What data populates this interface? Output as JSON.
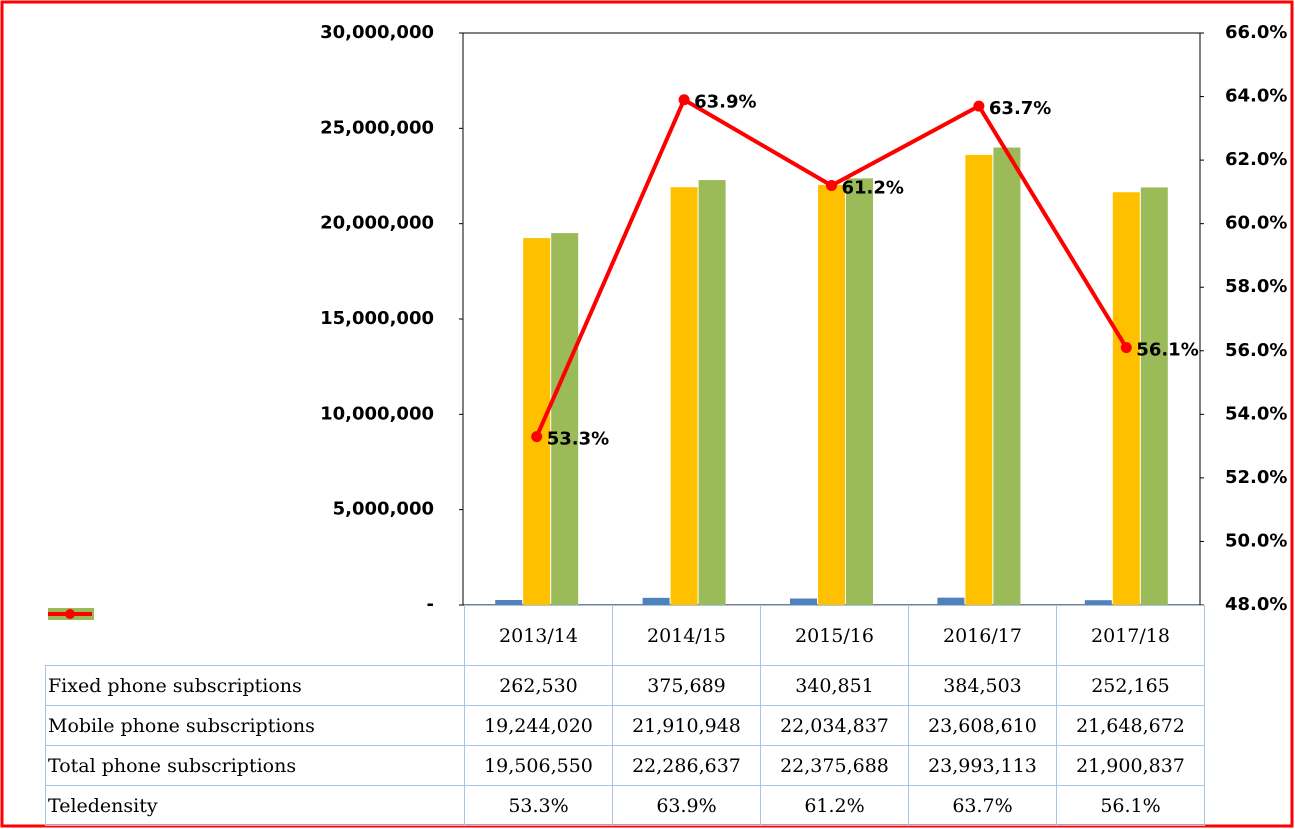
{
  "chart_data": {
    "type": "bar",
    "categories": [
      "2013/14",
      "2014/15",
      "2015/16",
      "2016/17",
      "2017/18"
    ],
    "series": [
      {
        "name": "Fixed phone subscriptions",
        "type": "bar",
        "color": "#4f81bd",
        "values": [
          262530,
          375689,
          340851,
          384503,
          252165
        ],
        "value_labels": [
          "262,530",
          "375,689",
          "340,851",
          "384,503",
          "252,165"
        ]
      },
      {
        "name": "Mobile phone subscriptions",
        "type": "bar",
        "color": "#ffc000",
        "values": [
          19244020,
          21910948,
          22034837,
          23608610,
          21648672
        ],
        "value_labels": [
          "19,244,020",
          "21,910,948",
          "22,034,837",
          "23,608,610",
          "21,648,672"
        ]
      },
      {
        "name": "Total phone subscriptions",
        "type": "bar",
        "color": "#9bbb59",
        "values": [
          19506550,
          22286637,
          22375688,
          23993113,
          21900837
        ],
        "value_labels": [
          "19,506,550",
          "22,286,637",
          "22,375,688",
          "23,993,113",
          "21,900,837"
        ]
      },
      {
        "name": "Teledensity",
        "type": "line",
        "axis": "y2",
        "color": "#ff0000",
        "values": [
          53.3,
          63.9,
          61.2,
          63.7,
          56.1
        ],
        "value_labels": [
          "53.3%",
          "63.9%",
          "61.2%",
          "63.7%",
          "56.1%"
        ]
      }
    ],
    "ylim": [
      0,
      30000000
    ],
    "yticks": [
      {
        "value": 0,
        "label": "-"
      },
      {
        "value": 5000000,
        "label": "5,000,000"
      },
      {
        "value": 10000000,
        "label": "10,000,000"
      },
      {
        "value": 15000000,
        "label": "15,000,000"
      },
      {
        "value": 20000000,
        "label": "20,000,000"
      },
      {
        "value": 25000000,
        "label": "25,000,000"
      },
      {
        "value": 30000000,
        "label": "30,000,000"
      }
    ],
    "y2lim": [
      48,
      66
    ],
    "y2ticks": [
      {
        "value": 48,
        "label": "48.0%"
      },
      {
        "value": 50,
        "label": "50.0%"
      },
      {
        "value": 52,
        "label": "52.0%"
      },
      {
        "value": 54,
        "label": "54.0%"
      },
      {
        "value": 56,
        "label": "56.0%"
      },
      {
        "value": 58,
        "label": "58.0%"
      },
      {
        "value": 60,
        "label": "60.0%"
      },
      {
        "value": 62,
        "label": "62.0%"
      },
      {
        "value": 64,
        "label": "64.0%"
      },
      {
        "value": 66,
        "label": "66.0%"
      }
    ],
    "grid": false,
    "legend": "table"
  }
}
